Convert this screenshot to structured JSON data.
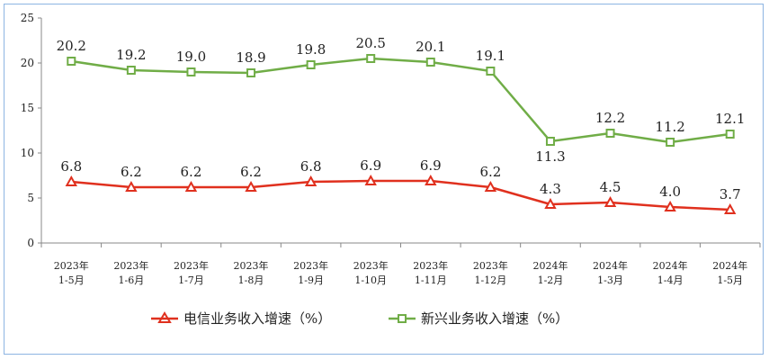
{
  "chart_data": {
    "type": "line",
    "title": "",
    "xlabel": "",
    "ylabel": "",
    "ylim": [
      0,
      25
    ],
    "yticks": [
      "0",
      "5",
      "10",
      "15",
      "20",
      "25"
    ],
    "grid": false,
    "legend_position": "bottom",
    "categories": [
      [
        "2023年",
        "1-5月"
      ],
      [
        "2023年",
        "1-6月"
      ],
      [
        "2023年",
        "1-7月"
      ],
      [
        "2023年",
        "1-8月"
      ],
      [
        "2023年",
        "1-9月"
      ],
      [
        "2023年",
        "1-10月"
      ],
      [
        "2023年",
        "1-11月"
      ],
      [
        "2023年",
        "1-12月"
      ],
      [
        "2024年",
        "1-2月"
      ],
      [
        "2024年",
        "1-3月"
      ],
      [
        "2024年",
        "1-4月"
      ],
      [
        "2024年",
        "1-5月"
      ]
    ],
    "series": [
      {
        "name": "电信业务收入增速（%）",
        "color": "#e0301e",
        "marker": "triangle",
        "values": [
          6.8,
          6.2,
          6.2,
          6.2,
          6.8,
          6.9,
          6.9,
          6.2,
          4.3,
          4.5,
          4.0,
          3.7
        ],
        "labels": [
          "6.8",
          "6.2",
          "6.2",
          "6.2",
          "6.8",
          "6.9",
          "6.9",
          "6.2",
          "4.3",
          "4.5",
          "4.0",
          "3.7"
        ]
      },
      {
        "name": "新兴业务收入增速（%）",
        "color": "#70ad47",
        "marker": "square",
        "values": [
          20.2,
          19.2,
          19.0,
          18.9,
          19.8,
          20.5,
          20.1,
          19.1,
          11.3,
          12.2,
          11.2,
          12.1
        ],
        "labels": [
          "20.2",
          "19.2",
          "19.0",
          "18.9",
          "19.8",
          "20.5",
          "20.1",
          "19.1",
          "11.3",
          "12.2",
          "11.2",
          "12.1"
        ]
      }
    ]
  }
}
